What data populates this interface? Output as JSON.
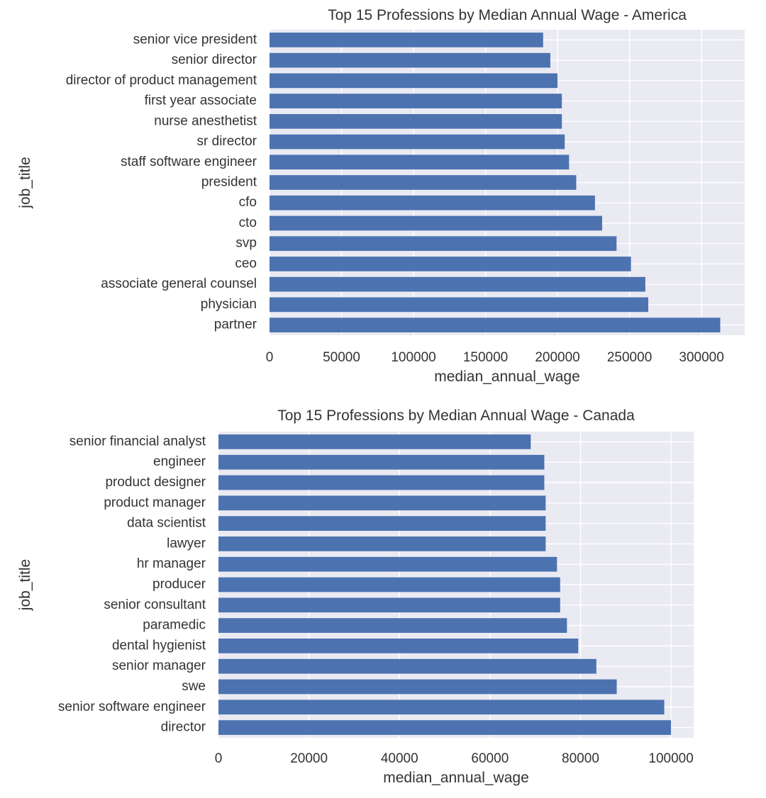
{
  "colors": {
    "bar": "#4c72b0",
    "plot_background": "#eaeaf2",
    "grid": "#ffffff",
    "text": "#333333"
  },
  "chart_data": [
    {
      "type": "bar",
      "orientation": "horizontal",
      "title": "Top 15 Professions by Median Annual Wage - America",
      "xlabel": "median_annual_wage",
      "ylabel": "job_title",
      "xlim": [
        0,
        330000
      ],
      "xticks": [
        0,
        50000,
        100000,
        150000,
        200000,
        250000,
        300000
      ],
      "grid": true,
      "categories": [
        "senior vice president",
        "senior director",
        "director of product management",
        "first year associate",
        "nurse anesthetist",
        "sr director",
        "staff software engineer",
        "president",
        "cfo",
        "cto",
        "svp",
        "ceo",
        "associate general counsel",
        "physician",
        "partner"
      ],
      "values": [
        190000,
        195000,
        200000,
        203000,
        203000,
        205000,
        208000,
        213000,
        226000,
        231000,
        241000,
        251000,
        261000,
        263000,
        313000
      ]
    },
    {
      "type": "bar",
      "orientation": "horizontal",
      "title": "Top 15 Professions by Median Annual Wage - Canada",
      "xlabel": "median_annual_wage",
      "ylabel": "job_title",
      "xlim": [
        0,
        105000
      ],
      "xticks": [
        0,
        20000,
        40000,
        60000,
        80000,
        100000
      ],
      "grid": true,
      "categories": [
        "senior financial analyst",
        "engineer",
        "product designer",
        "product manager",
        "data scientist",
        "lawyer",
        "hr manager",
        "producer",
        "senior consultant",
        "paramedic",
        "dental hygienist",
        "senior manager",
        "swe",
        "senior software engineer",
        "director"
      ],
      "values": [
        69000,
        72000,
        72000,
        72300,
        72300,
        72300,
        74800,
        75500,
        75500,
        77000,
        79500,
        83500,
        88000,
        98500,
        100000
      ]
    }
  ]
}
